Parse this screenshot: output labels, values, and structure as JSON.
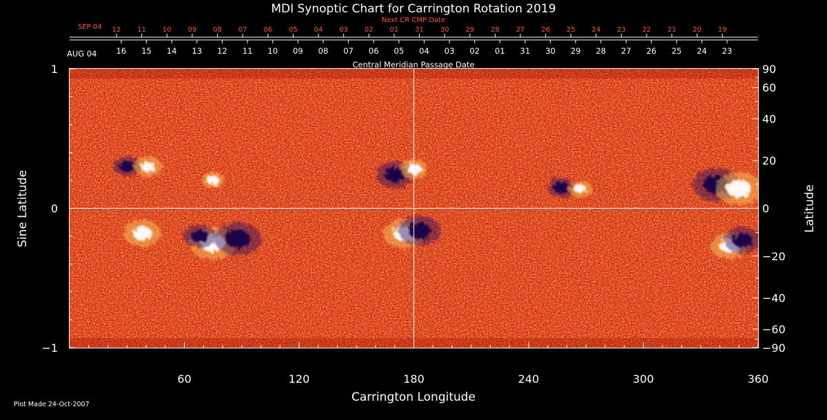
{
  "colors": {
    "background": "#000000",
    "map_base": "#e04010",
    "positive_polarity": "#ffffff",
    "negative_polarity": "#12004a",
    "next_cr_text": "#ff5533",
    "axis": "#ffffff"
  },
  "chart_data": {
    "type": "heatmap",
    "title": "MDI Synoptic Chart for Carrington Rotation 2019",
    "xlabel": "Carrington Longitude",
    "ylabel_left": "Sine Latitude",
    "ylabel_right": "Latitude",
    "xlim": [
      0,
      360
    ],
    "ylim": [
      -1,
      1
    ],
    "x_ticks": [
      60,
      120,
      180,
      240,
      300,
      360
    ],
    "y_ticks_left": [
      {
        "value": 1,
        "label": "1"
      },
      {
        "value": 0,
        "label": "0"
      },
      {
        "value": -1,
        "label": "−1"
      }
    ],
    "y_ticks_right_latitude": [
      90,
      60,
      40,
      20,
      0,
      -20,
      -40,
      -60,
      -90
    ],
    "y_ticks_right_labels": [
      "90",
      "60",
      "40",
      "20",
      "0",
      "−20",
      "−40",
      "−60",
      "−90"
    ],
    "crosshair_lines": {
      "x": 180,
      "y": 0
    },
    "next_cr_axis": {
      "label": "Next CR CMP Date",
      "month_label": "SEP 04",
      "dates": [
        "12",
        "11",
        "10",
        "09",
        "08",
        "07",
        "06",
        "05",
        "04",
        "03",
        "02",
        "01",
        "31",
        "30",
        "29",
        "28",
        "27",
        "26",
        "25",
        "24",
        "23",
        "22",
        "21",
        "20",
        "19"
      ],
      "first_longitude": 24.5,
      "step_degrees": 13.2
    },
    "current_cr_axis": {
      "label": "Central Meridian Passage Date",
      "month_label": "AUG 04",
      "dates": [
        "16",
        "15",
        "14",
        "13",
        "12",
        "11",
        "10",
        "09",
        "08",
        "07",
        "06",
        "05",
        "04",
        "03",
        "02",
        "01",
        "31",
        "30",
        "29",
        "28",
        "27",
        "26",
        "25",
        "24",
        "23"
      ],
      "first_longitude": 27,
      "step_degrees": 13.2
    },
    "active_regions": [
      {
        "lon": 75,
        "sinlat": -0.25,
        "polarity": "positive",
        "strength": 1.0
      },
      {
        "lon": 88,
        "sinlat": -0.22,
        "polarity": "negative",
        "strength": 1.0
      },
      {
        "lon": 68,
        "sinlat": -0.2,
        "polarity": "negative",
        "strength": 0.7
      },
      {
        "lon": 38,
        "sinlat": -0.18,
        "polarity": "positive",
        "strength": 0.8
      },
      {
        "lon": 175,
        "sinlat": -0.18,
        "polarity": "positive",
        "strength": 0.9
      },
      {
        "lon": 183,
        "sinlat": -0.16,
        "polarity": "negative",
        "strength": 0.9
      },
      {
        "lon": 170,
        "sinlat": 0.24,
        "polarity": "negative",
        "strength": 0.8
      },
      {
        "lon": 180,
        "sinlat": 0.28,
        "polarity": "positive",
        "strength": 0.6
      },
      {
        "lon": 30,
        "sinlat": 0.3,
        "polarity": "negative",
        "strength": 0.6
      },
      {
        "lon": 41,
        "sinlat": 0.3,
        "polarity": "positive",
        "strength": 0.6
      },
      {
        "lon": 75,
        "sinlat": 0.2,
        "polarity": "positive",
        "strength": 0.5
      },
      {
        "lon": 257,
        "sinlat": 0.15,
        "polarity": "negative",
        "strength": 0.6
      },
      {
        "lon": 267,
        "sinlat": 0.14,
        "polarity": "positive",
        "strength": 0.5
      },
      {
        "lon": 338,
        "sinlat": 0.17,
        "polarity": "negative",
        "strength": 1.0
      },
      {
        "lon": 350,
        "sinlat": 0.14,
        "polarity": "positive",
        "strength": 1.0
      },
      {
        "lon": 345,
        "sinlat": -0.27,
        "polarity": "positive",
        "strength": 0.8
      },
      {
        "lon": 352,
        "sinlat": -0.23,
        "polarity": "negative",
        "strength": 0.8
      }
    ]
  },
  "footer": {
    "plot_made": "Plot Made 24-Oct-2007"
  }
}
